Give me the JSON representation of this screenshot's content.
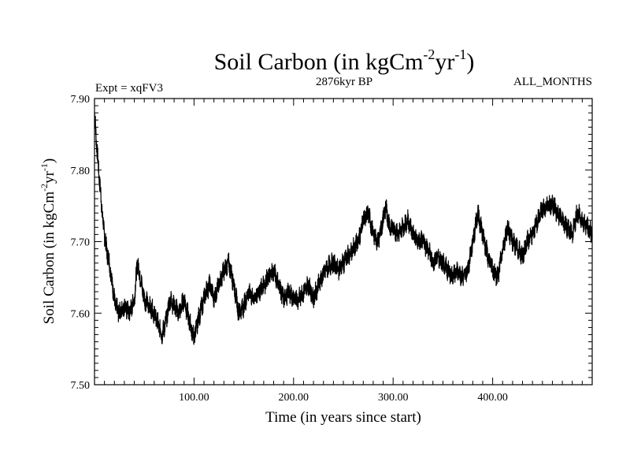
{
  "chart_data": {
    "type": "line",
    "title": "Soil Carbon (in kgCm",
    "title_exp1": "-2",
    "title_mid": "yr",
    "title_exp2": "-1",
    "title_end": ")",
    "expt_label": "Expt = xqFV3",
    "period_label": "2876kyr BP",
    "months_label": "ALL_MONTHS",
    "xlabel": "Time (in years since start)",
    "ylabel": "Soil Carbon (in kgCm",
    "ylabel_exp1": "-2",
    "ylabel_mid": "yr",
    "ylabel_exp2": "-1",
    "ylabel_end": ")",
    "xlim": [
      0,
      500
    ],
    "ylim": [
      7.5,
      7.9
    ],
    "x_ticks": [
      {
        "value": 100,
        "label": "100.00"
      },
      {
        "value": 200,
        "label": "200.00"
      },
      {
        "value": 300,
        "label": "300.00"
      },
      {
        "value": 400,
        "label": "400.00"
      }
    ],
    "y_ticks": [
      {
        "value": 7.5,
        "label": "7.50"
      },
      {
        "value": 7.6,
        "label": "7.60"
      },
      {
        "value": 7.7,
        "label": "7.70"
      },
      {
        "value": 7.8,
        "label": "7.80"
      },
      {
        "value": 7.9,
        "label": "7.90"
      }
    ],
    "series": [
      {
        "name": "Soil Carbon",
        "color": "#000000",
        "x": [
          0,
          3,
          6,
          9,
          12,
          15,
          18,
          21,
          25,
          30,
          35,
          40,
          43,
          46,
          50,
          55,
          60,
          65,
          68,
          72,
          76,
          80,
          85,
          90,
          95,
          100,
          104,
          108,
          112,
          116,
          120,
          125,
          130,
          135,
          140,
          145,
          150,
          155,
          160,
          165,
          170,
          175,
          180,
          185,
          190,
          195,
          200,
          205,
          210,
          215,
          220,
          225,
          230,
          235,
          240,
          245,
          250,
          255,
          260,
          265,
          270,
          275,
          280,
          285,
          290,
          293,
          296,
          300,
          305,
          310,
          315,
          320,
          325,
          330,
          335,
          340,
          345,
          350,
          355,
          360,
          365,
          370,
          375,
          380,
          385,
          390,
          395,
          400,
          405,
          410,
          415,
          420,
          425,
          430,
          435,
          440,
          445,
          450,
          455,
          460,
          465,
          470,
          475,
          480,
          485,
          490,
          495,
          500
        ],
        "values": [
          7.88,
          7.82,
          7.77,
          7.72,
          7.69,
          7.67,
          7.64,
          7.61,
          7.6,
          7.61,
          7.6,
          7.62,
          7.67,
          7.65,
          7.62,
          7.61,
          7.6,
          7.58,
          7.57,
          7.59,
          7.62,
          7.61,
          7.6,
          7.62,
          7.59,
          7.565,
          7.59,
          7.61,
          7.63,
          7.64,
          7.62,
          7.64,
          7.66,
          7.67,
          7.64,
          7.6,
          7.61,
          7.63,
          7.62,
          7.63,
          7.64,
          7.65,
          7.66,
          7.64,
          7.62,
          7.63,
          7.62,
          7.62,
          7.63,
          7.64,
          7.62,
          7.64,
          7.655,
          7.665,
          7.67,
          7.66,
          7.67,
          7.68,
          7.69,
          7.7,
          7.73,
          7.74,
          7.71,
          7.7,
          7.73,
          7.75,
          7.72,
          7.72,
          7.71,
          7.72,
          7.73,
          7.71,
          7.7,
          7.7,
          7.69,
          7.67,
          7.68,
          7.67,
          7.66,
          7.65,
          7.66,
          7.65,
          7.66,
          7.7,
          7.74,
          7.71,
          7.68,
          7.66,
          7.65,
          7.69,
          7.72,
          7.7,
          7.69,
          7.68,
          7.7,
          7.71,
          7.73,
          7.745,
          7.75,
          7.755,
          7.74,
          7.73,
          7.72,
          7.71,
          7.74,
          7.73,
          7.72,
          7.71
        ]
      }
    ]
  }
}
